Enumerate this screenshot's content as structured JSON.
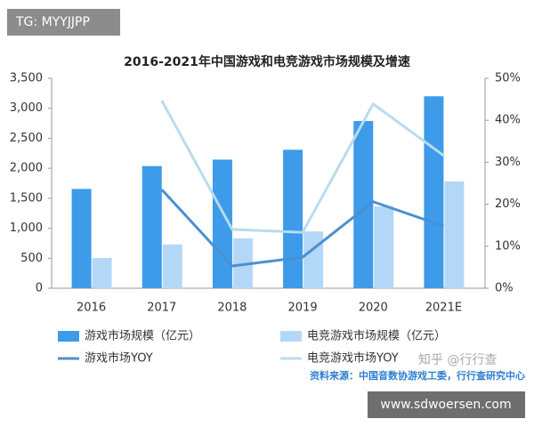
{
  "watermark": "TG: MYYJJPP",
  "chart_data": {
    "type": "bar-line",
    "title": "2016-2021年中国游戏和电竞游戏市场规模及增速",
    "categories": [
      "2016",
      "2017",
      "2018",
      "2019",
      "2020",
      "2021E"
    ],
    "series": [
      {
        "name": "游戏市场规模（亿元）",
        "type": "bar",
        "color": "#3d9be9",
        "values": [
          1655,
          2036,
          2144,
          2308,
          2787,
          3200
        ]
      },
      {
        "name": "电竞游戏市场规模（亿元）",
        "type": "bar",
        "color": "#b3d8f7",
        "values": [
          504,
          730,
          830,
          947,
          1365,
          1780
        ]
      },
      {
        "name": "游戏市场YOY",
        "type": "line",
        "axis": "y2",
        "color": "#4a90d0",
        "values": [
          null,
          23.5,
          5.3,
          7.4,
          20.6,
          14.8
        ]
      },
      {
        "name": "电竞游戏市场YOY",
        "type": "line",
        "axis": "y2",
        "color": "#b8dcef",
        "values": [
          null,
          44.7,
          14.0,
          13.3,
          43.9,
          31.6
        ]
      }
    ],
    "ylim": [
      0,
      3500
    ],
    "yticks": [
      0,
      500,
      {
        "value": 1000,
        "label": "1,000"
      },
      {
        "value": 1500,
        "label": "1,500"
      },
      {
        "value": 2000,
        "label": "2,000"
      },
      {
        "value": 2500,
        "label": "2,500"
      },
      {
        "value": 3000,
        "label": "3,000"
      },
      {
        "value": 3500,
        "label": "3,500"
      }
    ],
    "y2lim": [
      0,
      50
    ],
    "y2ticks": [
      {
        "value": 0,
        "label": "0%"
      },
      {
        "value": 10,
        "label": "10%"
      },
      {
        "value": 20,
        "label": "20%"
      },
      {
        "value": 30,
        "label": "30%"
      },
      {
        "value": 40,
        "label": "40%"
      },
      {
        "value": 50,
        "label": "50%"
      }
    ],
    "source": "资料来源：中国音数协游戏工委，行行查研究中心",
    "credit": "知乎 @行行查"
  },
  "site": "www.sdwoersen.com"
}
